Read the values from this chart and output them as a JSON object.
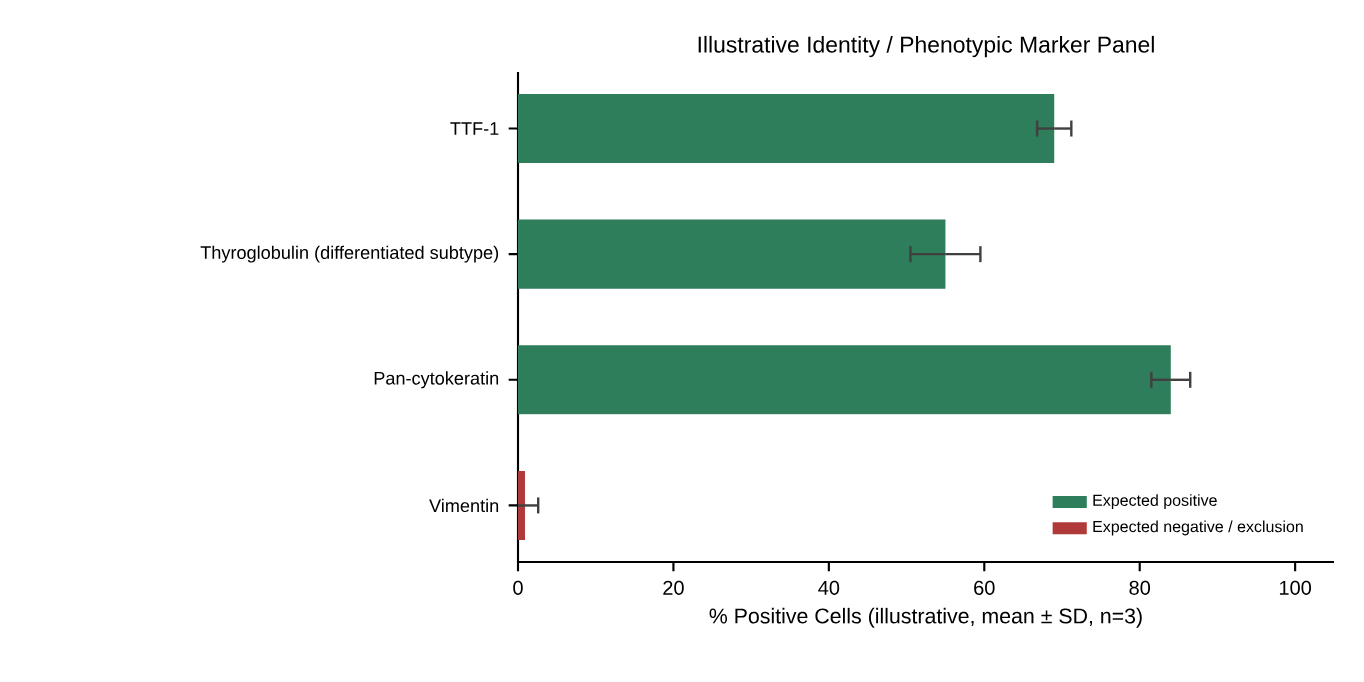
{
  "chart_data": {
    "type": "bar",
    "orientation": "horizontal",
    "title": "Illustrative Identity / Phenotypic Marker Panel",
    "xlabel": "% Positive Cells (illustrative, mean ± SD, n=3)",
    "categories": [
      "TTF-1",
      "Thyroglobulin (differentiated subtype)",
      "Pan-cytokeratin",
      "Vimentin"
    ],
    "series": [
      {
        "name": "Expected positive",
        "color": "#2e7d5b",
        "values": [
          69,
          55,
          84,
          null
        ],
        "errors": [
          2.2,
          4.5,
          2.5,
          null
        ]
      },
      {
        "name": "Expected negative / exclusion",
        "color": "#b03a3a",
        "values": [
          null,
          null,
          null,
          0.9
        ],
        "errors": [
          null,
          null,
          null,
          1.7
        ]
      }
    ],
    "xlim": [
      0,
      105
    ],
    "xticks": [
      0,
      20,
      40,
      60,
      80,
      100
    ],
    "legend": "bottom right",
    "grid": false
  }
}
